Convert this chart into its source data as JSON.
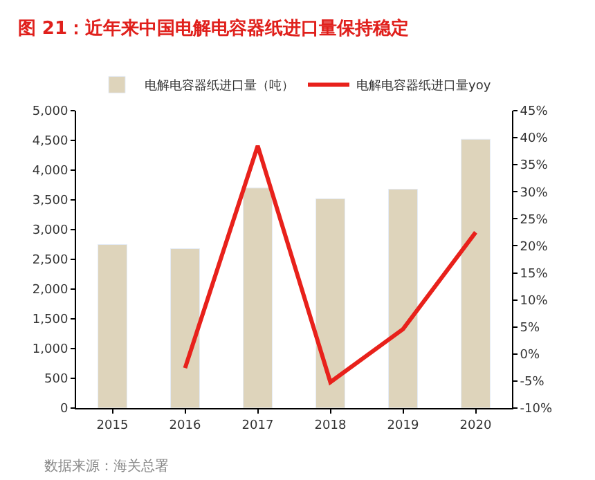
{
  "chart_data": {
    "type": "bar",
    "title": "图 21：近年来中国电解电容器纸进口量保持稳定",
    "categories": [
      "2015",
      "2016",
      "2017",
      "2018",
      "2019",
      "2020"
    ],
    "series": [
      {
        "name": "电解电容器纸进口量（吨）",
        "color": "#ded4bb",
        "values": [
          2750,
          2680,
          3700,
          3520,
          3680,
          4520
        ]
      },
      {
        "name": "电解电容器纸进口量yoy",
        "color": "#e8211b",
        "type": "line",
        "axis": "y2",
        "values": [
          null,
          -2.6,
          38.5,
          -5.2,
          4.6,
          22.5
        ]
      }
    ],
    "ylim": [
      0,
      5000
    ],
    "yticks": [
      {
        "value": 0,
        "label": "0"
      },
      {
        "value": 500,
        "label": "500"
      },
      {
        "value": 1000,
        "label": "1,000"
      },
      {
        "value": 1500,
        "label": "1,500"
      },
      {
        "value": 2000,
        "label": "2,000"
      },
      {
        "value": 2500,
        "label": "2,500"
      },
      {
        "value": 3000,
        "label": "3,000"
      },
      {
        "value": 3500,
        "label": "3,500"
      },
      {
        "value": 4000,
        "label": "4,000"
      },
      {
        "value": 4500,
        "label": "4,500"
      },
      {
        "value": 5000,
        "label": "5,000"
      }
    ],
    "y2lim": [
      -10,
      45
    ],
    "y2ticks": [
      {
        "value": -10,
        "label": "-10%"
      },
      {
        "value": -5,
        "label": "-5%"
      },
      {
        "value": 0,
        "label": "0%"
      },
      {
        "value": 5,
        "label": "5%"
      },
      {
        "value": 10,
        "label": "10%"
      },
      {
        "value": 15,
        "label": "15%"
      },
      {
        "value": 20,
        "label": "20%"
      },
      {
        "value": 25,
        "label": "25%"
      },
      {
        "value": 30,
        "label": "30%"
      },
      {
        "value": 35,
        "label": "35%"
      },
      {
        "value": 40,
        "label": "40%"
      },
      {
        "value": 45,
        "label": "45%"
      }
    ],
    "annotations": [
      "数据来源：海关总署"
    ],
    "legend": "top",
    "marker": "none",
    "line_style": "solid"
  }
}
